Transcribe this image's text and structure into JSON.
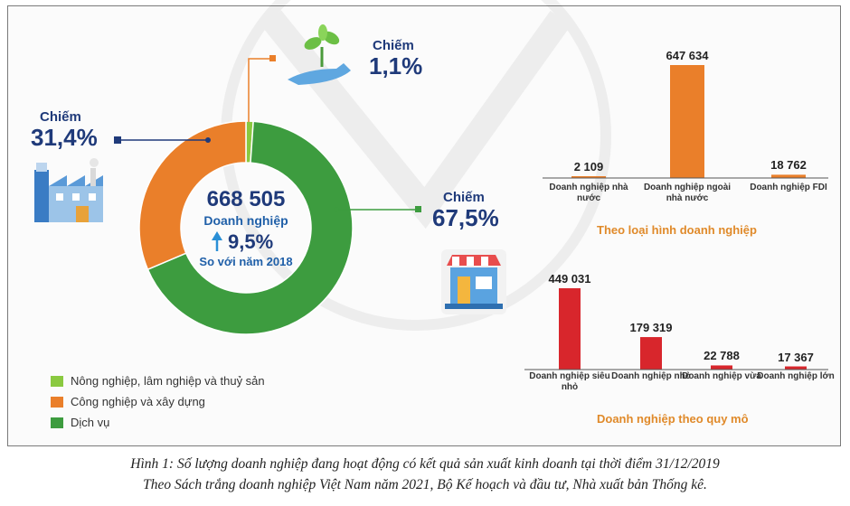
{
  "donut": {
    "total": "668 505",
    "unit": "Doanh nghiệp",
    "growth": "9,5%",
    "growth_note": "So với năm 2018",
    "chiem_label": "Chiếm",
    "slices": [
      {
        "name": "Nông nghiệp, lâm nghiệp và thuỷ sản",
        "value": 1.1,
        "pct_label": "1,1%",
        "color": "#8ac940"
      },
      {
        "name": "Công nghiệp và xây dựng",
        "value": 31.4,
        "pct_label": "31,4%",
        "color": "#ea7f2a"
      },
      {
        "name": "Dịch vụ",
        "value": 67.5,
        "pct_label": "67,5%",
        "color": "#3d9c3f"
      }
    ]
  },
  "chart_data": [
    {
      "type": "pie",
      "categories": [
        "Nông nghiệp, lâm nghiệp và thuỷ sản",
        "Công nghiệp và xây dựng",
        "Dịch vụ"
      ],
      "values": [
        1.1,
        31.4,
        67.5
      ],
      "title": ""
    },
    {
      "type": "bar",
      "categories": [
        "Doanh nghiệp nhà nước",
        "Doanh nghiệp ngoài nhà nước",
        "Doanh nghiệp FDI"
      ],
      "values": [
        2109,
        647634,
        18762
      ],
      "value_labels": [
        "2 109",
        "647 634",
        "18 762"
      ],
      "color": "#ea7f2a",
      "subtitle": "Theo loại hình doanh nghiệp",
      "ylim": [
        0,
        647634
      ]
    },
    {
      "type": "bar",
      "categories": [
        "Doanh nghiệp siêu nhỏ",
        "Doanh nghiệp nhỏ",
        "Doanh nghiệp vừa",
        "Doanh nghiệp lớn"
      ],
      "values": [
        449031,
        179319,
        22788,
        17367
      ],
      "value_labels": [
        "449 031",
        "179 319",
        "22 788",
        "17 367"
      ],
      "color": "#d8262c",
      "subtitle": "Doanh nghiệp theo quy mô",
      "ylim": [
        0,
        449031
      ]
    }
  ],
  "caption": {
    "line1": "Hình 1: Số lượng doanh nghiệp đang hoạt động có kết quả sản xuất kinh doanh tại thời điểm 31/12/2019",
    "line2": "Theo Sách trắng doanh nghiệp Việt Nam năm 2021, Bộ Kế hoạch và đầu tư, Nhà xuất bản Thống kê."
  },
  "icons": [
    "plant-hand-icon",
    "factory-icon",
    "shop-icon",
    "up-arrow-icon"
  ]
}
